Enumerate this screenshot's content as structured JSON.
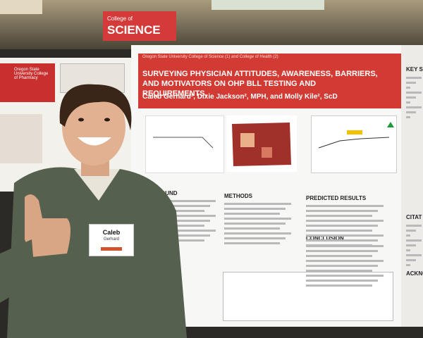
{
  "sign": {
    "line1": "College of",
    "line2": "SCIENCE"
  },
  "left_poster": {
    "org": "Oregon State University College of Pharmacy"
  },
  "poster": {
    "affiliation": "Oregon State University College of Science (1) and College of Health (2)",
    "title": "SURVEYING PHYSICIAN ATTITUDES, AWARENESS, BARRIERS, AND MOTIVATORS ON OHP BLL TESTING AND REQUIREMENTS.",
    "authors": "Caleb Gerhard¹, Dixie Jackson², MPH, and Molly Kile², ScD",
    "sections": {
      "background": "GROUND",
      "methods": "METHODS",
      "predicted": "PREDICTED RESULTS",
      "conclusion": "CONCLUSION",
      "key": "KEY S",
      "citations": "CITAT",
      "ack": "ACKNO"
    }
  },
  "badge": {
    "first": "Caleb",
    "last": "Gerhard"
  }
}
